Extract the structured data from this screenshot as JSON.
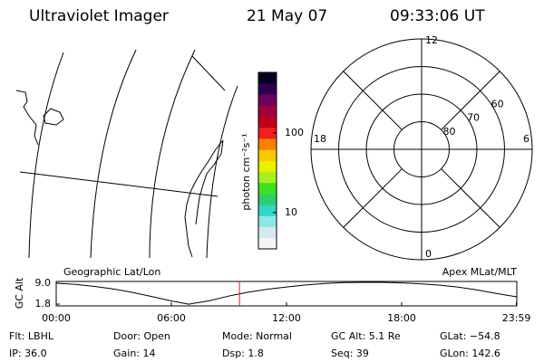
{
  "header": {
    "instrument": "Ultraviolet Imager",
    "date": "21 May 07",
    "time": "09:33:06 UT"
  },
  "colorbar": {
    "label": "photon cm⁻²s⁻¹",
    "log": true,
    "lim": [
      3.5,
      575
    ],
    "ticks": [
      10,
      100
    ],
    "colors": [
      "#f4f4f4",
      "#d8e8ec",
      "#8fe6ea",
      "#2fd6c8",
      "#2cd06a",
      "#3fe020",
      "#a8f020",
      "#e8f000",
      "#f8c800",
      "#f88000",
      "#f02020",
      "#c00018",
      "#a00040",
      "#700060",
      "#300050",
      "#080020"
    ]
  },
  "polar": {
    "mlt_labels": {
      "top": "12",
      "left": "18",
      "right": "6",
      "bottom": "0"
    },
    "latitudes": [
      80,
      70,
      60
    ],
    "lat_limit": 50
  },
  "chart_data": {
    "type": "line",
    "y_label": "GC Alt",
    "left_annotation": "Geographic Lat/Lon",
    "right_annotation": "Apex MLat/MLT",
    "x": [
      0,
      1,
      2,
      3,
      4,
      5,
      6,
      6.9,
      8,
      9,
      10,
      11,
      12,
      13,
      14,
      15,
      16,
      17,
      18,
      19,
      20,
      21,
      22,
      23,
      24
    ],
    "series": [
      {
        "name": "GC Alt",
        "color": "#000000",
        "values": [
          9.0,
          8.6,
          7.9,
          7.0,
          5.8,
          4.4,
          2.9,
          1.8,
          3.0,
          4.6,
          5.9,
          6.9,
          7.7,
          8.4,
          8.9,
          9.2,
          9.3,
          9.3,
          9.1,
          8.8,
          8.3,
          7.6,
          6.6,
          5.4,
          4.3
        ]
      }
    ],
    "xlim": [
      0,
      24
    ],
    "xticks": [
      {
        "value": 0,
        "label": "00:00"
      },
      {
        "value": 6,
        "label": "06:00"
      },
      {
        "value": 12,
        "label": "12:00"
      },
      {
        "value": 18,
        "label": "18:00"
      },
      {
        "value": 23.98,
        "label": "23:59"
      }
    ],
    "ylim": [
      1.2,
      9.6
    ],
    "yticks": [
      {
        "value": 9,
        "label": "9.0"
      },
      1.8
    ],
    "marker_x": 9.55,
    "marker_color": "#d02020"
  },
  "footer": {
    "rows": [
      [
        "Flt: LBHL",
        "Door: Open",
        "Mode: Normal",
        "GC Alt: 5.1 Re",
        "GLat: −54.8"
      ],
      [
        "IP: 36.0",
        "Gain: 14",
        "Dsp:   1.8",
        "Seq: 39",
        "GLon: 142.6"
      ]
    ]
  }
}
